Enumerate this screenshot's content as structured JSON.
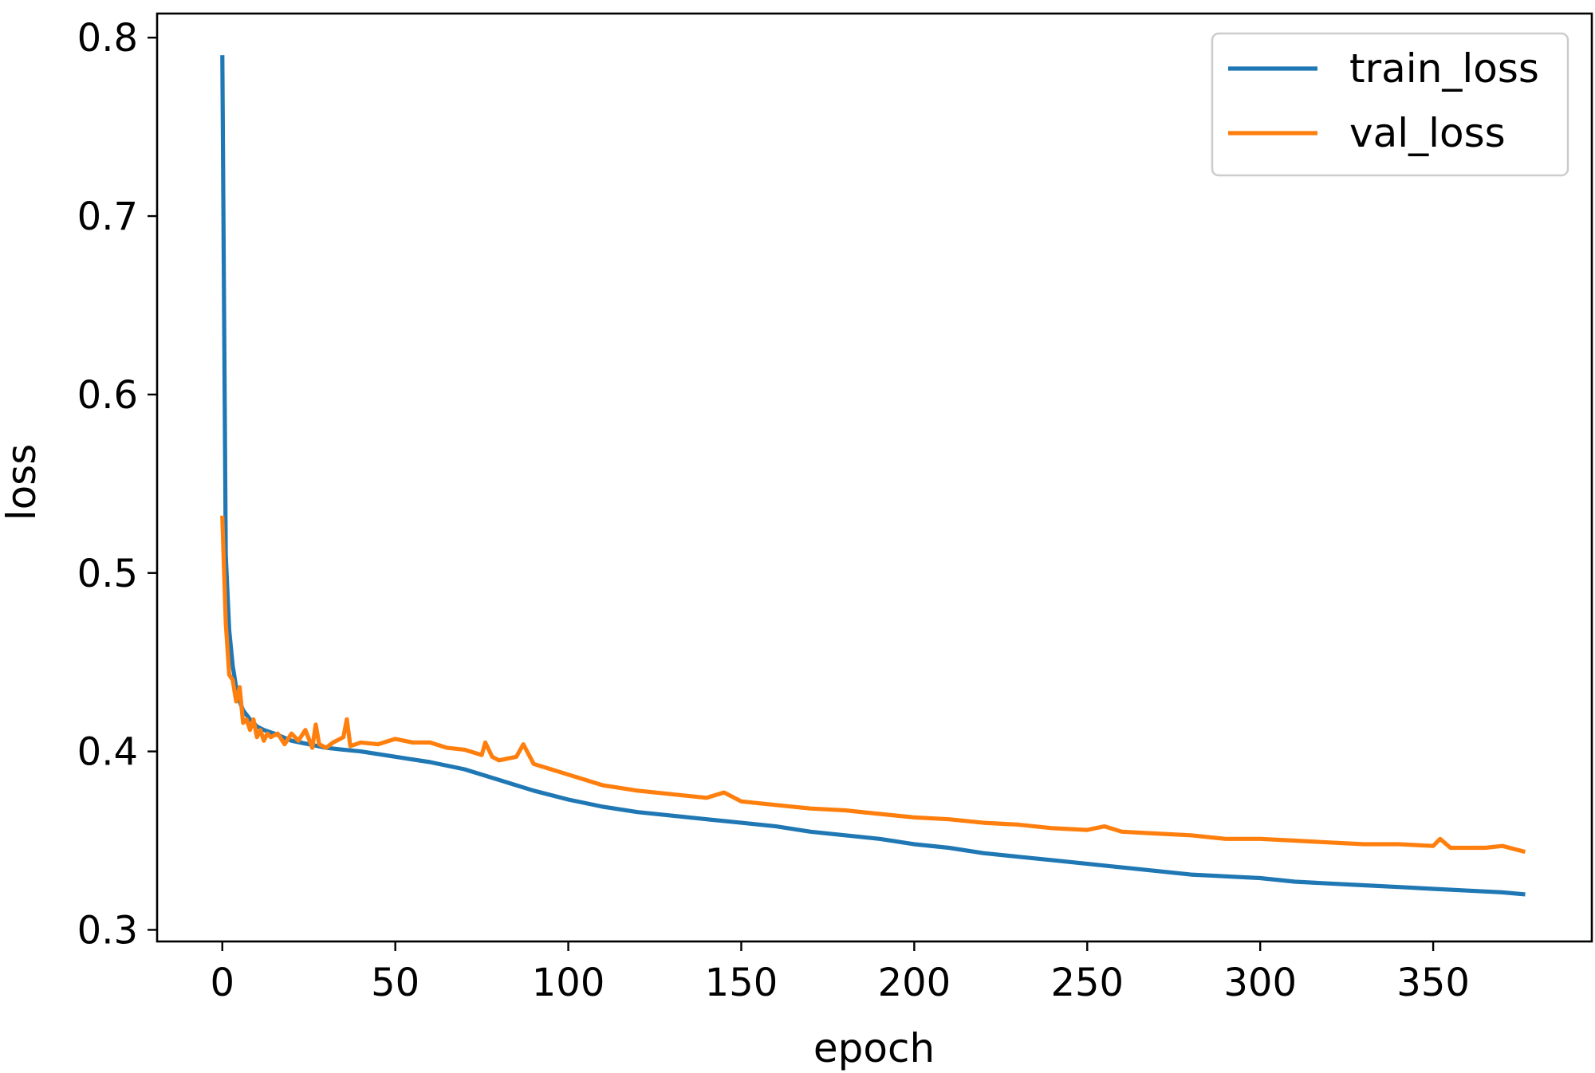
{
  "chart_data": {
    "type": "line",
    "xlabel": "epoch",
    "ylabel": "loss",
    "xlim": [
      -18.85,
      395.85
    ],
    "ylim": [
      0.2935,
      0.8135
    ],
    "xticks": [
      0,
      50,
      100,
      150,
      200,
      250,
      300,
      350
    ],
    "xtick_labels": [
      "0",
      "50",
      "100",
      "150",
      "200",
      "250",
      "300",
      "350"
    ],
    "yticks": [
      0.3,
      0.4,
      0.5,
      0.6,
      0.7,
      0.8
    ],
    "ytick_labels": [
      "0.3",
      "0.4",
      "0.5",
      "0.6",
      "0.7",
      "0.8"
    ],
    "grid": false,
    "legend_position": "top-right",
    "series": [
      {
        "name": "train_loss",
        "color": "#1f77b4",
        "x": [
          0,
          1,
          2,
          3,
          4,
          5,
          6,
          8,
          10,
          12,
          15,
          20,
          25,
          30,
          35,
          40,
          50,
          60,
          70,
          80,
          90,
          100,
          110,
          120,
          130,
          140,
          150,
          160,
          170,
          180,
          190,
          200,
          210,
          220,
          230,
          240,
          250,
          260,
          270,
          280,
          290,
          300,
          310,
          320,
          330,
          340,
          350,
          360,
          370,
          376
        ],
        "y": [
          0.789,
          0.51,
          0.468,
          0.448,
          0.436,
          0.428,
          0.423,
          0.418,
          0.414,
          0.412,
          0.41,
          0.406,
          0.404,
          0.402,
          0.401,
          0.4,
          0.397,
          0.394,
          0.39,
          0.384,
          0.378,
          0.373,
          0.369,
          0.366,
          0.364,
          0.362,
          0.36,
          0.358,
          0.355,
          0.353,
          0.351,
          0.348,
          0.346,
          0.343,
          0.341,
          0.339,
          0.337,
          0.335,
          0.333,
          0.331,
          0.33,
          0.329,
          0.327,
          0.326,
          0.325,
          0.324,
          0.323,
          0.322,
          0.321,
          0.32
        ]
      },
      {
        "name": "val_loss",
        "color": "#ff7f0e",
        "x": [
          0,
          1,
          2,
          3,
          4,
          5,
          6,
          7,
          8,
          9,
          10,
          11,
          12,
          13,
          14,
          16,
          18,
          20,
          22,
          24,
          26,
          27,
          28,
          30,
          32,
          35,
          36,
          37,
          40,
          45,
          50,
          55,
          60,
          65,
          70,
          75,
          76,
          78,
          80,
          85,
          87,
          90,
          95,
          100,
          105,
          110,
          120,
          130,
          140,
          145,
          150,
          160,
          170,
          180,
          190,
          200,
          210,
          220,
          230,
          240,
          250,
          255,
          260,
          270,
          280,
          290,
          300,
          310,
          320,
          330,
          340,
          350,
          352,
          355,
          360,
          365,
          370,
          376
        ],
        "y": [
          0.531,
          0.472,
          0.443,
          0.44,
          0.428,
          0.436,
          0.416,
          0.418,
          0.412,
          0.418,
          0.408,
          0.412,
          0.406,
          0.41,
          0.408,
          0.41,
          0.404,
          0.41,
          0.406,
          0.412,
          0.402,
          0.415,
          0.404,
          0.402,
          0.405,
          0.408,
          0.418,
          0.403,
          0.405,
          0.404,
          0.407,
          0.405,
          0.405,
          0.402,
          0.401,
          0.398,
          0.405,
          0.397,
          0.395,
          0.397,
          0.404,
          0.393,
          0.39,
          0.387,
          0.384,
          0.381,
          0.378,
          0.376,
          0.374,
          0.377,
          0.372,
          0.37,
          0.368,
          0.367,
          0.365,
          0.363,
          0.362,
          0.36,
          0.359,
          0.357,
          0.356,
          0.358,
          0.355,
          0.354,
          0.353,
          0.351,
          0.351,
          0.35,
          0.349,
          0.348,
          0.348,
          0.347,
          0.351,
          0.346,
          0.346,
          0.346,
          0.347,
          0.344
        ]
      }
    ]
  }
}
